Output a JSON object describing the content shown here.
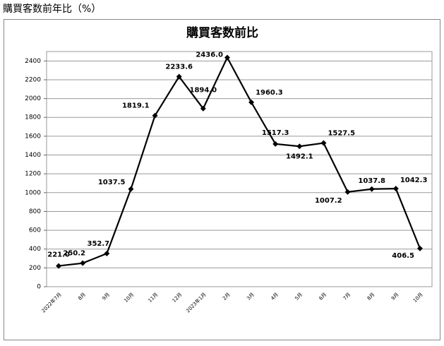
{
  "header": "購買客数前年比（%）",
  "chart_data": {
    "type": "line",
    "title": "購買客数前比",
    "categories": [
      "2022年7月",
      "8月",
      "9月",
      "10月",
      "11月",
      "12月",
      "2023年1月",
      "2月",
      "3月",
      "4月",
      "5月",
      "6月",
      "7月",
      "8月",
      "9月",
      "10月"
    ],
    "values": [
      221.0,
      250.2,
      352.7,
      1037.5,
      1819.1,
      2233.6,
      1894.0,
      2436.0,
      1960.3,
      1517.3,
      1492.1,
      1527.5,
      1007.2,
      1037.8,
      1042.3,
      406.5
    ],
    "value_labels": [
      "221.0",
      "250.2",
      "352.7",
      "1037.5",
      "1819.1",
      "2233.6",
      "1894.0",
      "2436.0",
      "1960.3",
      "1517.3",
      "1492.1",
      "1527.5",
      "1007.2",
      "1037.8",
      "1042.3",
      "406.5"
    ],
    "color": "#000000",
    "ylim": [
      0,
      2500
    ],
    "yticks": [
      0,
      200,
      400,
      600,
      800,
      1000,
      1200,
      1400,
      1600,
      1800,
      2000,
      2200,
      2400
    ],
    "grid": true
  }
}
